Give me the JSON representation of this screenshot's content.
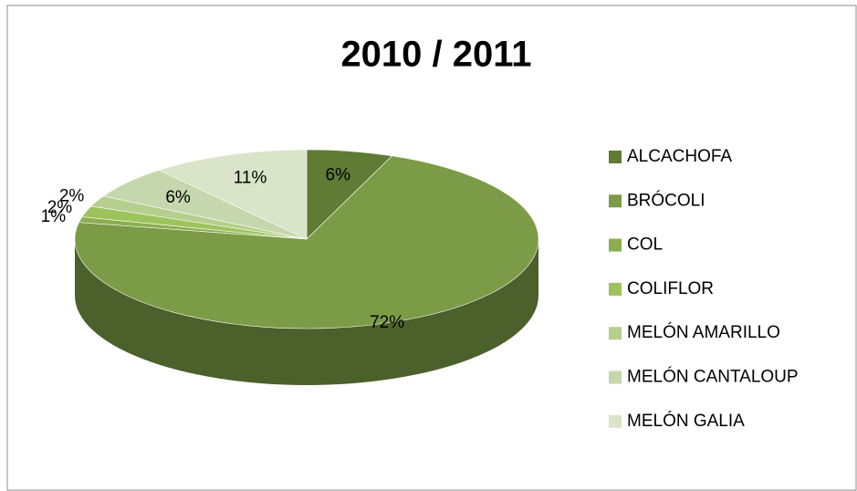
{
  "chart_data": {
    "type": "pie",
    "title": "2010 / 2011",
    "categories": [
      "ALCACHOFA",
      "BRÓCOLI",
      "COL",
      "COLIFLOR",
      "MELÓN AMARILLO",
      "MELÓN CANTALOUP",
      "MELÓN GALIA"
    ],
    "values": [
      6,
      72,
      1,
      2,
      2,
      6,
      11
    ],
    "value_labels": [
      "6%",
      "72%",
      "1%",
      "2%",
      "2%",
      "6%",
      "11%"
    ],
    "colors": [
      "#5f7b34",
      "#7b9b46",
      "#8cae50",
      "#9dc45c",
      "#b5cf8c",
      "#c6d7ad",
      "#d9e4c8"
    ],
    "legend": "right"
  }
}
